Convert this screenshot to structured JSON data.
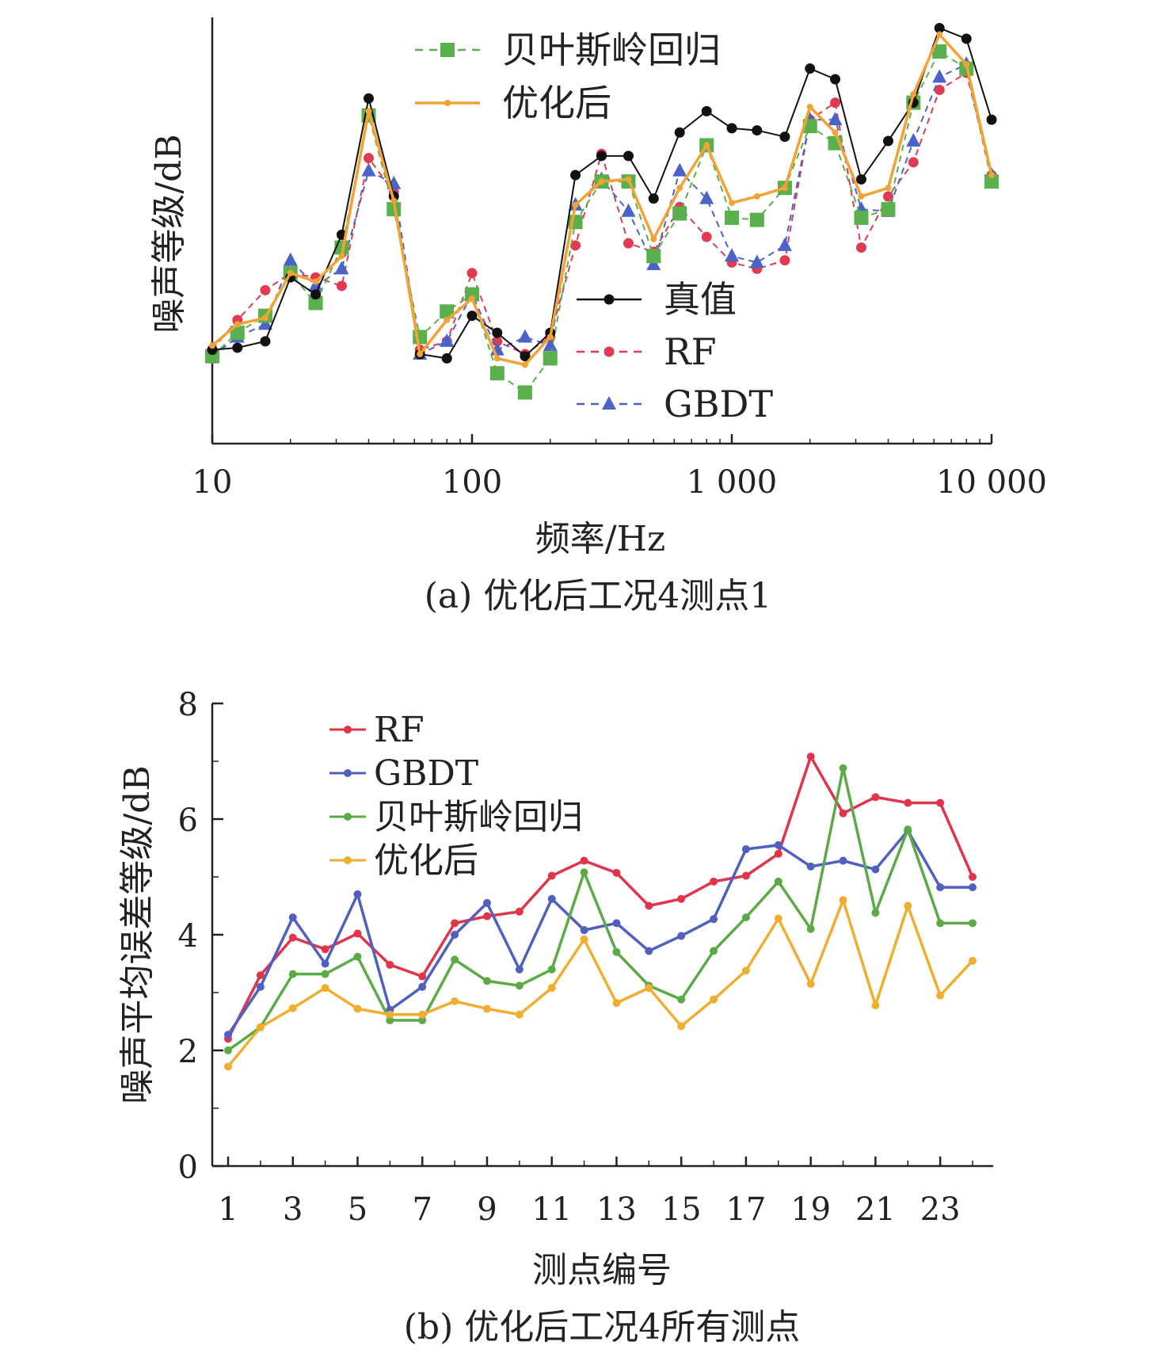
{
  "chart_data": [
    {
      "type": "line",
      "caption": "(a) 优化后工况4测点1",
      "xlabel": "频率/Hz",
      "ylabel": "噪声等级/dB",
      "xscale": "log",
      "xlim": [
        10,
        10000
      ],
      "ylim": [
        0,
        100
      ],
      "yticks_shown": false,
      "xticks": [
        10,
        100,
        1000,
        10000
      ],
      "xtick_labels": [
        "10",
        "100",
        "1 000",
        "10 000"
      ],
      "x": [
        10,
        12.5,
        16,
        20,
        25,
        31.5,
        40,
        50,
        63,
        80,
        100,
        125,
        160,
        200,
        250,
        315,
        400,
        500,
        630,
        800,
        1000,
        1250,
        1600,
        2000,
        2500,
        3150,
        4000,
        5000,
        6300,
        8000,
        10000
      ],
      "series": [
        {
          "name": "真值",
          "color": "#111111",
          "marker": "circle",
          "dash": "solid",
          "values": [
            22,
            22.5,
            24,
            39,
            35,
            49,
            81,
            58,
            21,
            20,
            30,
            26,
            20.5,
            26,
            63,
            67.5,
            67.5,
            57.5,
            73,
            78,
            74,
            73.5,
            72,
            88,
            85.5,
            62,
            71,
            80,
            97.5,
            95,
            76
          ]
        },
        {
          "name": "RF",
          "color": "#e23a52",
          "marker": "circle",
          "dash": "dashed",
          "values": [
            22,
            29,
            36,
            40,
            39,
            37,
            67,
            59,
            22,
            24,
            40,
            24,
            21,
            25,
            46.5,
            68,
            47,
            45,
            55.5,
            48.5,
            42.5,
            41,
            43,
            76,
            80,
            46,
            58,
            66,
            83,
            87,
            63
          ]
        },
        {
          "name": "GBDT",
          "color": "#4b63c9",
          "marker": "triangle",
          "dash": "dashed",
          "values": [
            20.5,
            25,
            28,
            43,
            37,
            41,
            64,
            61,
            21,
            24,
            35,
            22,
            25,
            23,
            56,
            62,
            54.5,
            42,
            64,
            57.5,
            44,
            42.5,
            46.5,
            76,
            76,
            55,
            54.5,
            71,
            86,
            89,
            63
          ]
        },
        {
          "name": "贝叶斯岭回归",
          "color": "#5ab04c",
          "marker": "square",
          "dash": "dashed",
          "values": [
            20.5,
            26,
            30,
            40,
            33,
            46,
            77,
            55,
            25,
            31,
            35,
            16.5,
            12,
            20,
            52,
            61.5,
            61.5,
            44,
            54,
            70,
            53,
            52.5,
            60,
            74.5,
            70.5,
            53,
            55,
            80,
            92,
            88,
            61.5
          ]
        },
        {
          "name": "优化后",
          "color": "#f2a236",
          "marker": "small-circle",
          "dash": "solid",
          "values": [
            23,
            28,
            29.5,
            40,
            38,
            44,
            78,
            57,
            21,
            29,
            34,
            20,
            18.5,
            25,
            56,
            61.5,
            62,
            48,
            60,
            70,
            56.5,
            58,
            60,
            79,
            73,
            58,
            60,
            82,
            96,
            89,
            63
          ]
        }
      ],
      "legend": [
        "贝叶斯岭回归",
        "优化后",
        "真值",
        "RF",
        "GBDT"
      ]
    },
    {
      "type": "line",
      "caption": "(b) 优化后工况4所有测点",
      "xlabel": "测点编号",
      "ylabel": "噪声平均误差等级/dB",
      "xlim": [
        1,
        24
      ],
      "ylim": [
        0,
        8
      ],
      "xtick_labels": [
        "1",
        "3",
        "5",
        "7",
        "9",
        "11",
        "13",
        "15",
        "17",
        "19",
        "21",
        "23"
      ],
      "ytick_labels": [
        "0",
        "2",
        "4",
        "6",
        "8"
      ],
      "categories": [
        1,
        2,
        3,
        4,
        5,
        6,
        7,
        8,
        9,
        10,
        11,
        12,
        13,
        14,
        15,
        16,
        17,
        18,
        19,
        20,
        21,
        22,
        23,
        24
      ],
      "series": [
        {
          "name": "RF",
          "color": "#e0344a",
          "values": [
            2.2,
            3.3,
            3.95,
            3.75,
            4.02,
            3.48,
            3.28,
            4.2,
            4.32,
            4.4,
            5.02,
            5.28,
            5.07,
            4.5,
            4.62,
            4.92,
            5.02,
            5.4,
            7.08,
            6.1,
            6.38,
            6.28,
            6.28,
            5.0
          ]
        },
        {
          "name": "GBDT",
          "color": "#5060c0",
          "values": [
            2.27,
            3.1,
            4.3,
            3.5,
            4.7,
            2.7,
            3.1,
            4.0,
            4.55,
            3.4,
            4.62,
            4.08,
            4.2,
            3.72,
            3.98,
            4.27,
            5.48,
            5.55,
            5.18,
            5.28,
            5.13,
            5.8,
            4.82,
            4.82
          ]
        },
        {
          "name": "贝叶斯岭回归",
          "color": "#5aab46",
          "values": [
            2.0,
            2.4,
            3.32,
            3.32,
            3.62,
            2.52,
            2.52,
            3.57,
            3.2,
            3.12,
            3.4,
            5.08,
            3.7,
            3.12,
            2.88,
            3.72,
            4.3,
            4.92,
            4.1,
            6.88,
            4.38,
            5.82,
            4.2,
            4.2
          ]
        },
        {
          "name": "优化后",
          "color": "#f0ae30",
          "values": [
            1.72,
            2.4,
            2.73,
            3.08,
            2.72,
            2.62,
            2.62,
            2.85,
            2.72,
            2.62,
            3.08,
            3.92,
            2.82,
            3.08,
            2.42,
            2.88,
            3.38,
            4.28,
            3.15,
            4.6,
            2.78,
            4.5,
            2.95,
            3.55
          ]
        }
      ],
      "legend": [
        "RF",
        "GBDT",
        "贝叶斯岭回归",
        "优化后"
      ]
    }
  ]
}
